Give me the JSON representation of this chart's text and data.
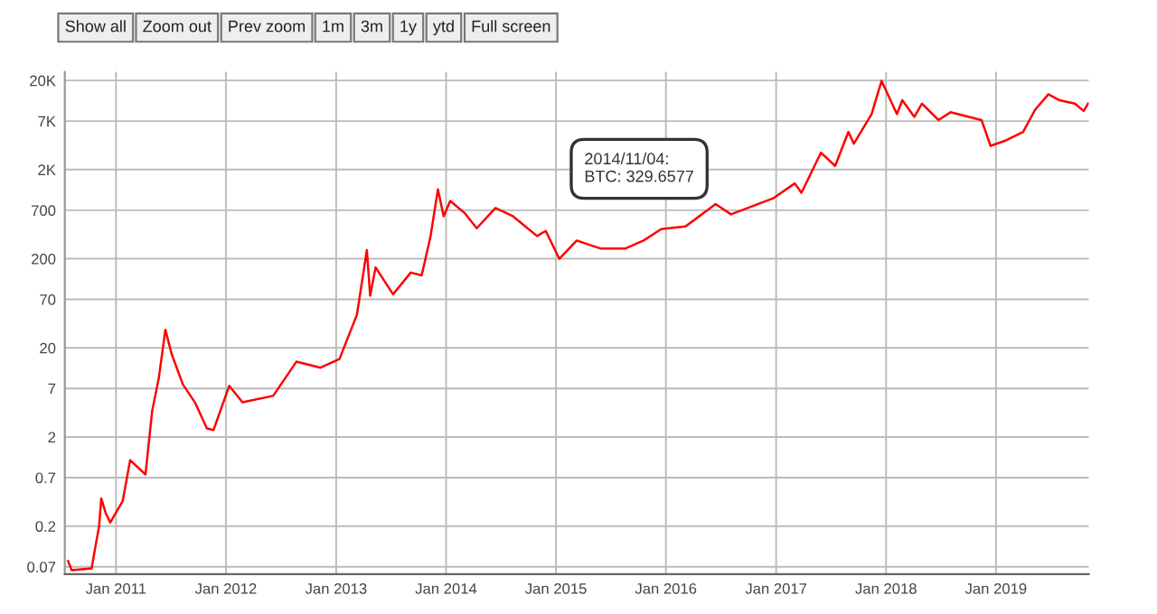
{
  "chart_data": {
    "type": "line",
    "log": "y",
    "grid": true,
    "marker": "none",
    "line_style": "solid",
    "xlim": [
      "2010-07-15",
      "2019-11-05"
    ],
    "ylim": [
      0.058,
      25000
    ],
    "xticks": [
      {
        "value": "2011-01-01",
        "label": "Jan 2011"
      },
      {
        "value": "2012-01-01",
        "label": "Jan 2012"
      },
      {
        "value": "2013-01-01",
        "label": "Jan 2013"
      },
      {
        "value": "2014-01-01",
        "label": "Jan 2014"
      },
      {
        "value": "2015-01-01",
        "label": "Jan 2015"
      },
      {
        "value": "2016-01-01",
        "label": "Jan 2016"
      },
      {
        "value": "2017-01-01",
        "label": "Jan 2017"
      },
      {
        "value": "2018-01-01",
        "label": "Jan 2018"
      },
      {
        "value": "2019-01-01",
        "label": "Jan 2019"
      }
    ],
    "yticks": [
      0.07,
      0.2,
      0.7,
      2,
      7,
      20,
      70,
      200,
      700,
      {
        "value": 2000,
        "label": "2K"
      },
      {
        "value": 7000,
        "label": "7K"
      },
      {
        "value": 20000,
        "label": "20K"
      }
    ],
    "annotations": [
      "Show all",
      "Zoom out",
      "Prev zoom",
      "1m",
      "3m",
      "1y",
      "ytd",
      "Full screen",
      "2014/11/04:\nBTC: 329.6577"
    ],
    "series": [
      {
        "color": "#ff0000",
        "x": [
          "2010-07-26",
          "2010-08-07",
          "2010-10-12",
          "2010-10-23",
          "2010-11-06",
          "2010-11-13",
          "2010-11-28",
          "2010-12-13",
          "2011-01-23",
          "2011-02-17",
          "2011-04-09",
          "2011-05-01",
          "2011-05-23",
          "2011-06-14",
          "2011-07-05",
          "2011-08-11",
          "2011-09-20",
          "2011-10-30",
          "2011-11-21",
          "2012-01-12",
          "2012-02-25",
          "2012-06-06",
          "2012-08-22",
          "2012-11-10",
          "2013-01-12",
          "2013-03-11",
          "2013-04-13",
          "2013-04-24",
          "2013-05-12",
          "2013-07-09",
          "2013-09-06",
          "2013-10-12",
          "2013-11-10",
          "2013-12-05",
          "2013-12-24",
          "2014-01-15",
          "2014-03-04",
          "2014-04-13",
          "2014-06-14",
          "2014-08-11",
          "2014-10-30",
          "2014-11-28",
          "2015-01-12",
          "2015-03-11",
          "2015-05-30",
          "2015-08-18",
          "2015-10-19",
          "2015-12-16",
          "2016-03-06",
          "2016-06-14",
          "2016-08-04",
          "2016-12-24",
          "2017-03-04",
          "2017-03-26",
          "2017-05-30",
          "2017-07-16",
          "2017-08-29",
          "2017-09-16",
          "2017-11-14",
          "2017-12-17",
          "2018-02-06",
          "2018-02-24",
          "2018-04-05",
          "2018-04-30",
          "2018-06-24",
          "2018-08-03",
          "2018-11-14",
          "2018-12-14",
          "2019-01-30",
          "2019-04-01",
          "2019-05-11",
          "2019-06-24",
          "2019-07-31",
          "2019-09-20",
          "2019-10-19",
          "2019-11-03"
        ],
        "values": [
          0.081,
          0.064,
          0.067,
          0.11,
          0.2,
          0.41,
          0.28,
          0.22,
          0.38,
          1.1,
          0.76,
          3.9,
          9.1,
          32,
          17,
          7.8,
          4.9,
          2.5,
          2.4,
          7.5,
          4.9,
          5.8,
          14,
          12,
          15,
          47,
          250,
          77,
          160,
          80,
          140,
          130,
          350,
          1200,
          600,
          890,
          650,
          440,
          740,
          600,
          360,
          410,
          200,
          320,
          260,
          260,
          320,
          430,
          460,
          820,
          630,
          960,
          1400,
          1100,
          3100,
          2200,
          5300,
          3900,
          8400,
          19800,
          8400,
          12000,
          7800,
          11000,
          7200,
          8800,
          7200,
          3700,
          4200,
          5300,
          9400,
          14000,
          12000,
          11000,
          9100,
          11000
        ]
      }
    ]
  }
}
